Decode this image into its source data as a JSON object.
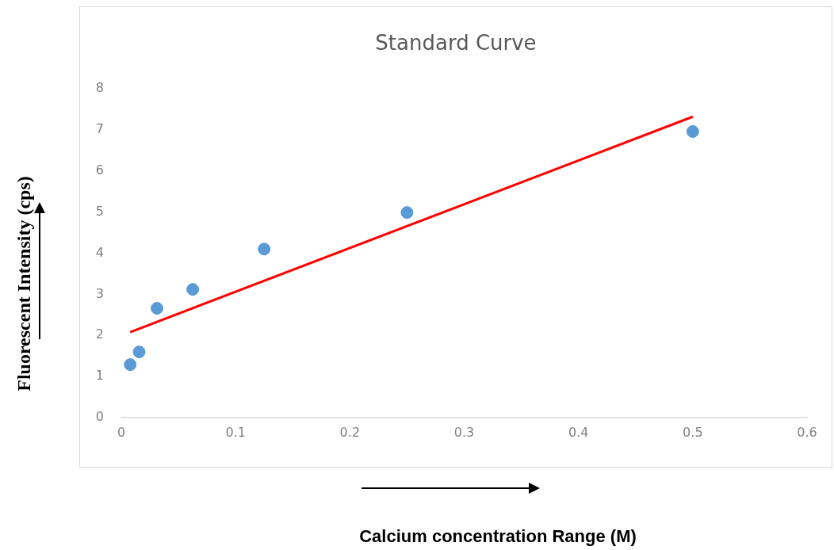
{
  "chart_data": {
    "type": "scatter",
    "title": "Standard Curve",
    "xlabel": "Calcium concentration Range (M)",
    "ylabel": "Fluorescent Intensity (cps)",
    "x": [
      0.0078,
      0.0156,
      0.03125,
      0.0625,
      0.125,
      0.25,
      0.5
    ],
    "series": [
      {
        "color": "#5b9bd5",
        "marker": "circle",
        "values": [
          1.29,
          1.6,
          2.66,
          3.12,
          4.1,
          4.99,
          6.96
        ]
      },
      {
        "type": "line",
        "color": "#ff0000",
        "x": [
          0.0078,
          0.5
        ],
        "values": [
          2.08,
          7.32
        ]
      }
    ],
    "xlim": [
      0,
      0.6
    ],
    "xticks": [
      0,
      0.1,
      0.2,
      0.3,
      0.4,
      0.5,
      0.6
    ],
    "ylim": [
      0,
      8
    ],
    "yticks": [
      0,
      1,
      2,
      3,
      4,
      5,
      6,
      7,
      8
    ]
  }
}
